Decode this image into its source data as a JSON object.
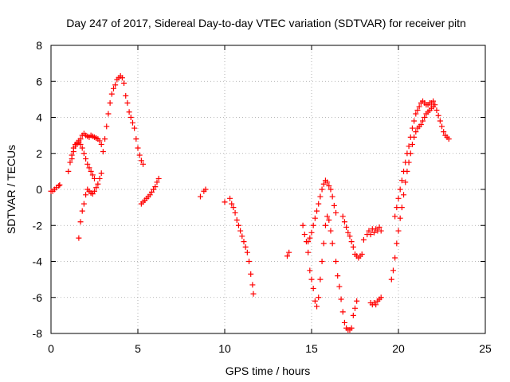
{
  "chart_data": {
    "type": "scatter",
    "title": "Day 247 of 2017, Sidereal Day-to-day VTEC variation (SDTVAR) for receiver pitn",
    "xlabel": "GPS time / hours",
    "ylabel": "SDTVAR / TECUs",
    "xlim": [
      0,
      25
    ],
    "ylim": [
      -8,
      8
    ],
    "xticks": [
      "0",
      "5",
      "10",
      "15",
      "20",
      "25"
    ],
    "yticks": [
      "-8",
      "-6",
      "-4",
      "-2",
      "0",
      "2",
      "4",
      "6",
      "8"
    ],
    "grid": true,
    "marker": "plus",
    "color": "#ff0000",
    "series": [
      {
        "points": [
          [
            0.0,
            -0.1
          ],
          [
            0.1,
            -0.1
          ],
          [
            0.2,
            0.0
          ],
          [
            0.3,
            0.1
          ],
          [
            0.45,
            0.2
          ],
          [
            0.5,
            0.25
          ],
          [
            1.0,
            1.0
          ],
          [
            1.1,
            1.5
          ],
          [
            1.2,
            1.9
          ],
          [
            1.3,
            2.3
          ],
          [
            1.4,
            2.5
          ],
          [
            1.5,
            2.6
          ],
          [
            1.6,
            2.7
          ],
          [
            1.7,
            2.8
          ],
          [
            1.8,
            3.0
          ],
          [
            1.9,
            3.1
          ],
          [
            2.0,
            3.0
          ],
          [
            2.1,
            2.95
          ],
          [
            2.2,
            2.9
          ],
          [
            2.3,
            3.0
          ],
          [
            2.4,
            2.95
          ],
          [
            2.5,
            2.9
          ],
          [
            2.6,
            2.85
          ],
          [
            2.7,
            2.8
          ],
          [
            2.8,
            2.7
          ],
          [
            2.9,
            2.5
          ],
          [
            3.0,
            2.1
          ],
          [
            3.1,
            2.8
          ],
          [
            3.2,
            3.5
          ],
          [
            3.3,
            4.2
          ],
          [
            3.4,
            4.8
          ],
          [
            3.5,
            5.3
          ],
          [
            3.6,
            5.6
          ],
          [
            3.7,
            5.8
          ],
          [
            3.8,
            6.1
          ],
          [
            3.9,
            6.2
          ],
          [
            4.0,
            6.3
          ],
          [
            4.1,
            6.2
          ],
          [
            4.2,
            5.9
          ],
          [
            4.3,
            5.2
          ],
          [
            4.4,
            4.8
          ],
          [
            4.5,
            4.3
          ],
          [
            4.6,
            4.0
          ],
          [
            4.7,
            3.7
          ],
          [
            4.8,
            3.4
          ],
          [
            4.9,
            2.8
          ],
          [
            5.0,
            2.3
          ],
          [
            5.1,
            1.9
          ],
          [
            5.2,
            1.6
          ],
          [
            5.3,
            1.4
          ],
          [
            5.2,
            -0.8
          ],
          [
            5.3,
            -0.7
          ],
          [
            5.4,
            -0.6
          ],
          [
            5.5,
            -0.5
          ],
          [
            5.6,
            -0.4
          ],
          [
            5.7,
            -0.3
          ],
          [
            5.8,
            -0.15
          ],
          [
            5.9,
            0.0
          ],
          [
            6.0,
            0.15
          ],
          [
            6.1,
            0.4
          ],
          [
            6.2,
            0.6
          ],
          [
            8.6,
            -0.4
          ],
          [
            8.8,
            -0.1
          ],
          [
            8.9,
            0.0
          ],
          [
            10.0,
            -0.7
          ],
          [
            10.3,
            -0.5
          ],
          [
            10.4,
            -0.8
          ],
          [
            10.5,
            -1.0
          ],
          [
            10.6,
            -1.3
          ],
          [
            10.7,
            -1.7
          ],
          [
            10.8,
            -2.0
          ],
          [
            10.9,
            -2.3
          ],
          [
            11.0,
            -2.6
          ],
          [
            11.1,
            -2.9
          ],
          [
            11.2,
            -3.2
          ],
          [
            11.3,
            -3.5
          ],
          [
            11.4,
            -4.0
          ],
          [
            11.5,
            -4.7
          ],
          [
            11.6,
            -5.3
          ],
          [
            11.65,
            -5.8
          ],
          [
            13.6,
            -3.7
          ],
          [
            13.7,
            -3.5
          ],
          [
            14.5,
            -2.0
          ],
          [
            14.6,
            -2.5
          ],
          [
            14.7,
            -2.9
          ],
          [
            14.8,
            -3.5
          ],
          [
            14.9,
            -4.5
          ],
          [
            15.0,
            -5.0
          ],
          [
            15.1,
            -5.5
          ],
          [
            15.2,
            -6.2
          ],
          [
            15.3,
            -6.5
          ],
          [
            15.4,
            -6.0
          ],
          [
            15.5,
            -5.0
          ],
          [
            15.6,
            -4.0
          ],
          [
            15.7,
            -3.0
          ],
          [
            15.8,
            -2.0
          ],
          [
            15.9,
            -1.5
          ],
          [
            16.0,
            -1.7
          ],
          [
            16.1,
            -2.3
          ],
          [
            16.2,
            -3.0
          ],
          [
            16.4,
            -4.0
          ],
          [
            16.5,
            -4.8
          ],
          [
            16.6,
            -5.4
          ],
          [
            16.7,
            -6.1
          ],
          [
            16.8,
            -6.8
          ],
          [
            16.9,
            -7.4
          ],
          [
            17.0,
            -7.7
          ],
          [
            17.1,
            -7.8
          ],
          [
            17.2,
            -7.8
          ],
          [
            17.3,
            -7.7
          ],
          [
            17.4,
            -7.0
          ],
          [
            17.5,
            -6.6
          ],
          [
            17.6,
            -6.2
          ],
          [
            18.0,
            -2.8
          ],
          [
            18.2,
            -2.5
          ],
          [
            18.3,
            -2.3
          ],
          [
            18.4,
            -2.5
          ],
          [
            18.5,
            -2.2
          ],
          [
            18.6,
            -2.4
          ],
          [
            18.7,
            -2.2
          ],
          [
            18.8,
            -2.3
          ],
          [
            18.9,
            -2.1
          ],
          [
            19.0,
            -2.3
          ],
          [
            18.4,
            -6.3
          ],
          [
            18.5,
            -6.4
          ],
          [
            18.6,
            -6.3
          ],
          [
            18.7,
            -6.4
          ],
          [
            18.8,
            -6.2
          ],
          [
            18.9,
            -6.1
          ],
          [
            19.0,
            -6.0
          ],
          [
            19.8,
            -1.5
          ],
          [
            19.9,
            -1.0
          ],
          [
            20.0,
            -0.5
          ],
          [
            20.1,
            0.0
          ],
          [
            20.2,
            0.5
          ],
          [
            20.3,
            1.0
          ],
          [
            20.4,
            1.5
          ],
          [
            20.5,
            2.0
          ],
          [
            20.6,
            2.4
          ],
          [
            20.7,
            2.9
          ],
          [
            20.8,
            3.4
          ],
          [
            20.9,
            3.8
          ],
          [
            21.0,
            4.2
          ],
          [
            21.1,
            4.4
          ],
          [
            21.2,
            4.6
          ],
          [
            21.3,
            4.8
          ],
          [
            21.4,
            4.9
          ],
          [
            21.5,
            4.8
          ],
          [
            21.6,
            4.7
          ],
          [
            21.7,
            4.7
          ],
          [
            21.8,
            4.8
          ],
          [
            21.9,
            4.8
          ],
          [
            22.0,
            4.9
          ],
          [
            22.1,
            4.7
          ],
          [
            22.2,
            4.4
          ],
          [
            22.3,
            4.1
          ],
          [
            22.4,
            3.8
          ],
          [
            22.5,
            3.5
          ],
          [
            22.6,
            3.2
          ],
          [
            22.7,
            3.0
          ],
          [
            22.8,
            2.9
          ],
          [
            22.9,
            2.8
          ],
          [
            19.6,
            -5.0
          ],
          [
            19.7,
            -4.5
          ],
          [
            19.8,
            -3.8
          ],
          [
            19.9,
            -3.0
          ],
          [
            20.0,
            -2.3
          ],
          [
            20.1,
            -1.6
          ],
          [
            20.2,
            -1.0
          ],
          [
            20.3,
            -0.3
          ],
          [
            20.4,
            0.4
          ],
          [
            20.5,
            1.0
          ],
          [
            20.6,
            1.5
          ],
          [
            20.7,
            2.0
          ],
          [
            20.8,
            2.5
          ],
          [
            20.9,
            2.9
          ],
          [
            21.0,
            3.2
          ],
          [
            21.1,
            3.4
          ],
          [
            21.2,
            3.5
          ],
          [
            21.3,
            3.6
          ],
          [
            21.4,
            3.8
          ],
          [
            21.5,
            4.0
          ],
          [
            21.6,
            4.2
          ],
          [
            21.7,
            4.3
          ],
          [
            21.8,
            4.4
          ],
          [
            21.9,
            4.5
          ],
          [
            22.0,
            4.6
          ],
          [
            1.6,
            -2.7
          ],
          [
            1.7,
            -1.8
          ],
          [
            1.8,
            -1.2
          ],
          [
            1.9,
            -0.8
          ],
          [
            2.0,
            -0.3
          ],
          [
            2.1,
            0.0
          ],
          [
            2.2,
            -0.1
          ],
          [
            2.3,
            -0.2
          ],
          [
            2.4,
            -0.25
          ],
          [
            2.5,
            -0.1
          ],
          [
            2.6,
            0.1
          ],
          [
            2.7,
            0.3
          ],
          [
            2.8,
            0.6
          ],
          [
            2.9,
            0.9
          ],
          [
            1.2,
            1.7
          ],
          [
            1.3,
            2.1
          ],
          [
            1.4,
            2.4
          ],
          [
            1.5,
            2.55
          ],
          [
            1.6,
            2.6
          ],
          [
            1.7,
            2.5
          ],
          [
            1.8,
            2.3
          ],
          [
            1.9,
            2.0
          ],
          [
            2.0,
            1.7
          ],
          [
            2.1,
            1.4
          ],
          [
            2.2,
            1.2
          ],
          [
            2.3,
            1.0
          ],
          [
            2.4,
            0.8
          ],
          [
            2.5,
            0.6
          ],
          [
            14.8,
            -2.9
          ],
          [
            14.9,
            -2.7
          ],
          [
            15.0,
            -2.4
          ],
          [
            15.1,
            -2.0
          ],
          [
            15.2,
            -1.6
          ],
          [
            15.3,
            -1.2
          ],
          [
            15.4,
            -0.8
          ],
          [
            15.5,
            -0.4
          ],
          [
            15.6,
            0.0
          ],
          [
            15.7,
            0.3
          ],
          [
            15.8,
            0.5
          ],
          [
            15.9,
            0.4
          ],
          [
            16.0,
            0.2
          ],
          [
            16.1,
            0.0
          ],
          [
            16.2,
            -0.4
          ],
          [
            16.3,
            -0.9
          ],
          [
            16.4,
            -1.3
          ],
          [
            16.8,
            -1.5
          ],
          [
            16.9,
            -1.8
          ],
          [
            17.0,
            -2.1
          ],
          [
            17.1,
            -2.4
          ],
          [
            17.2,
            -2.6
          ],
          [
            17.3,
            -2.9
          ],
          [
            17.4,
            -3.2
          ],
          [
            17.5,
            -3.6
          ],
          [
            17.6,
            -3.7
          ],
          [
            17.7,
            -3.8
          ],
          [
            17.8,
            -3.7
          ],
          [
            17.9,
            -3.6
          ]
        ]
      }
    ]
  }
}
